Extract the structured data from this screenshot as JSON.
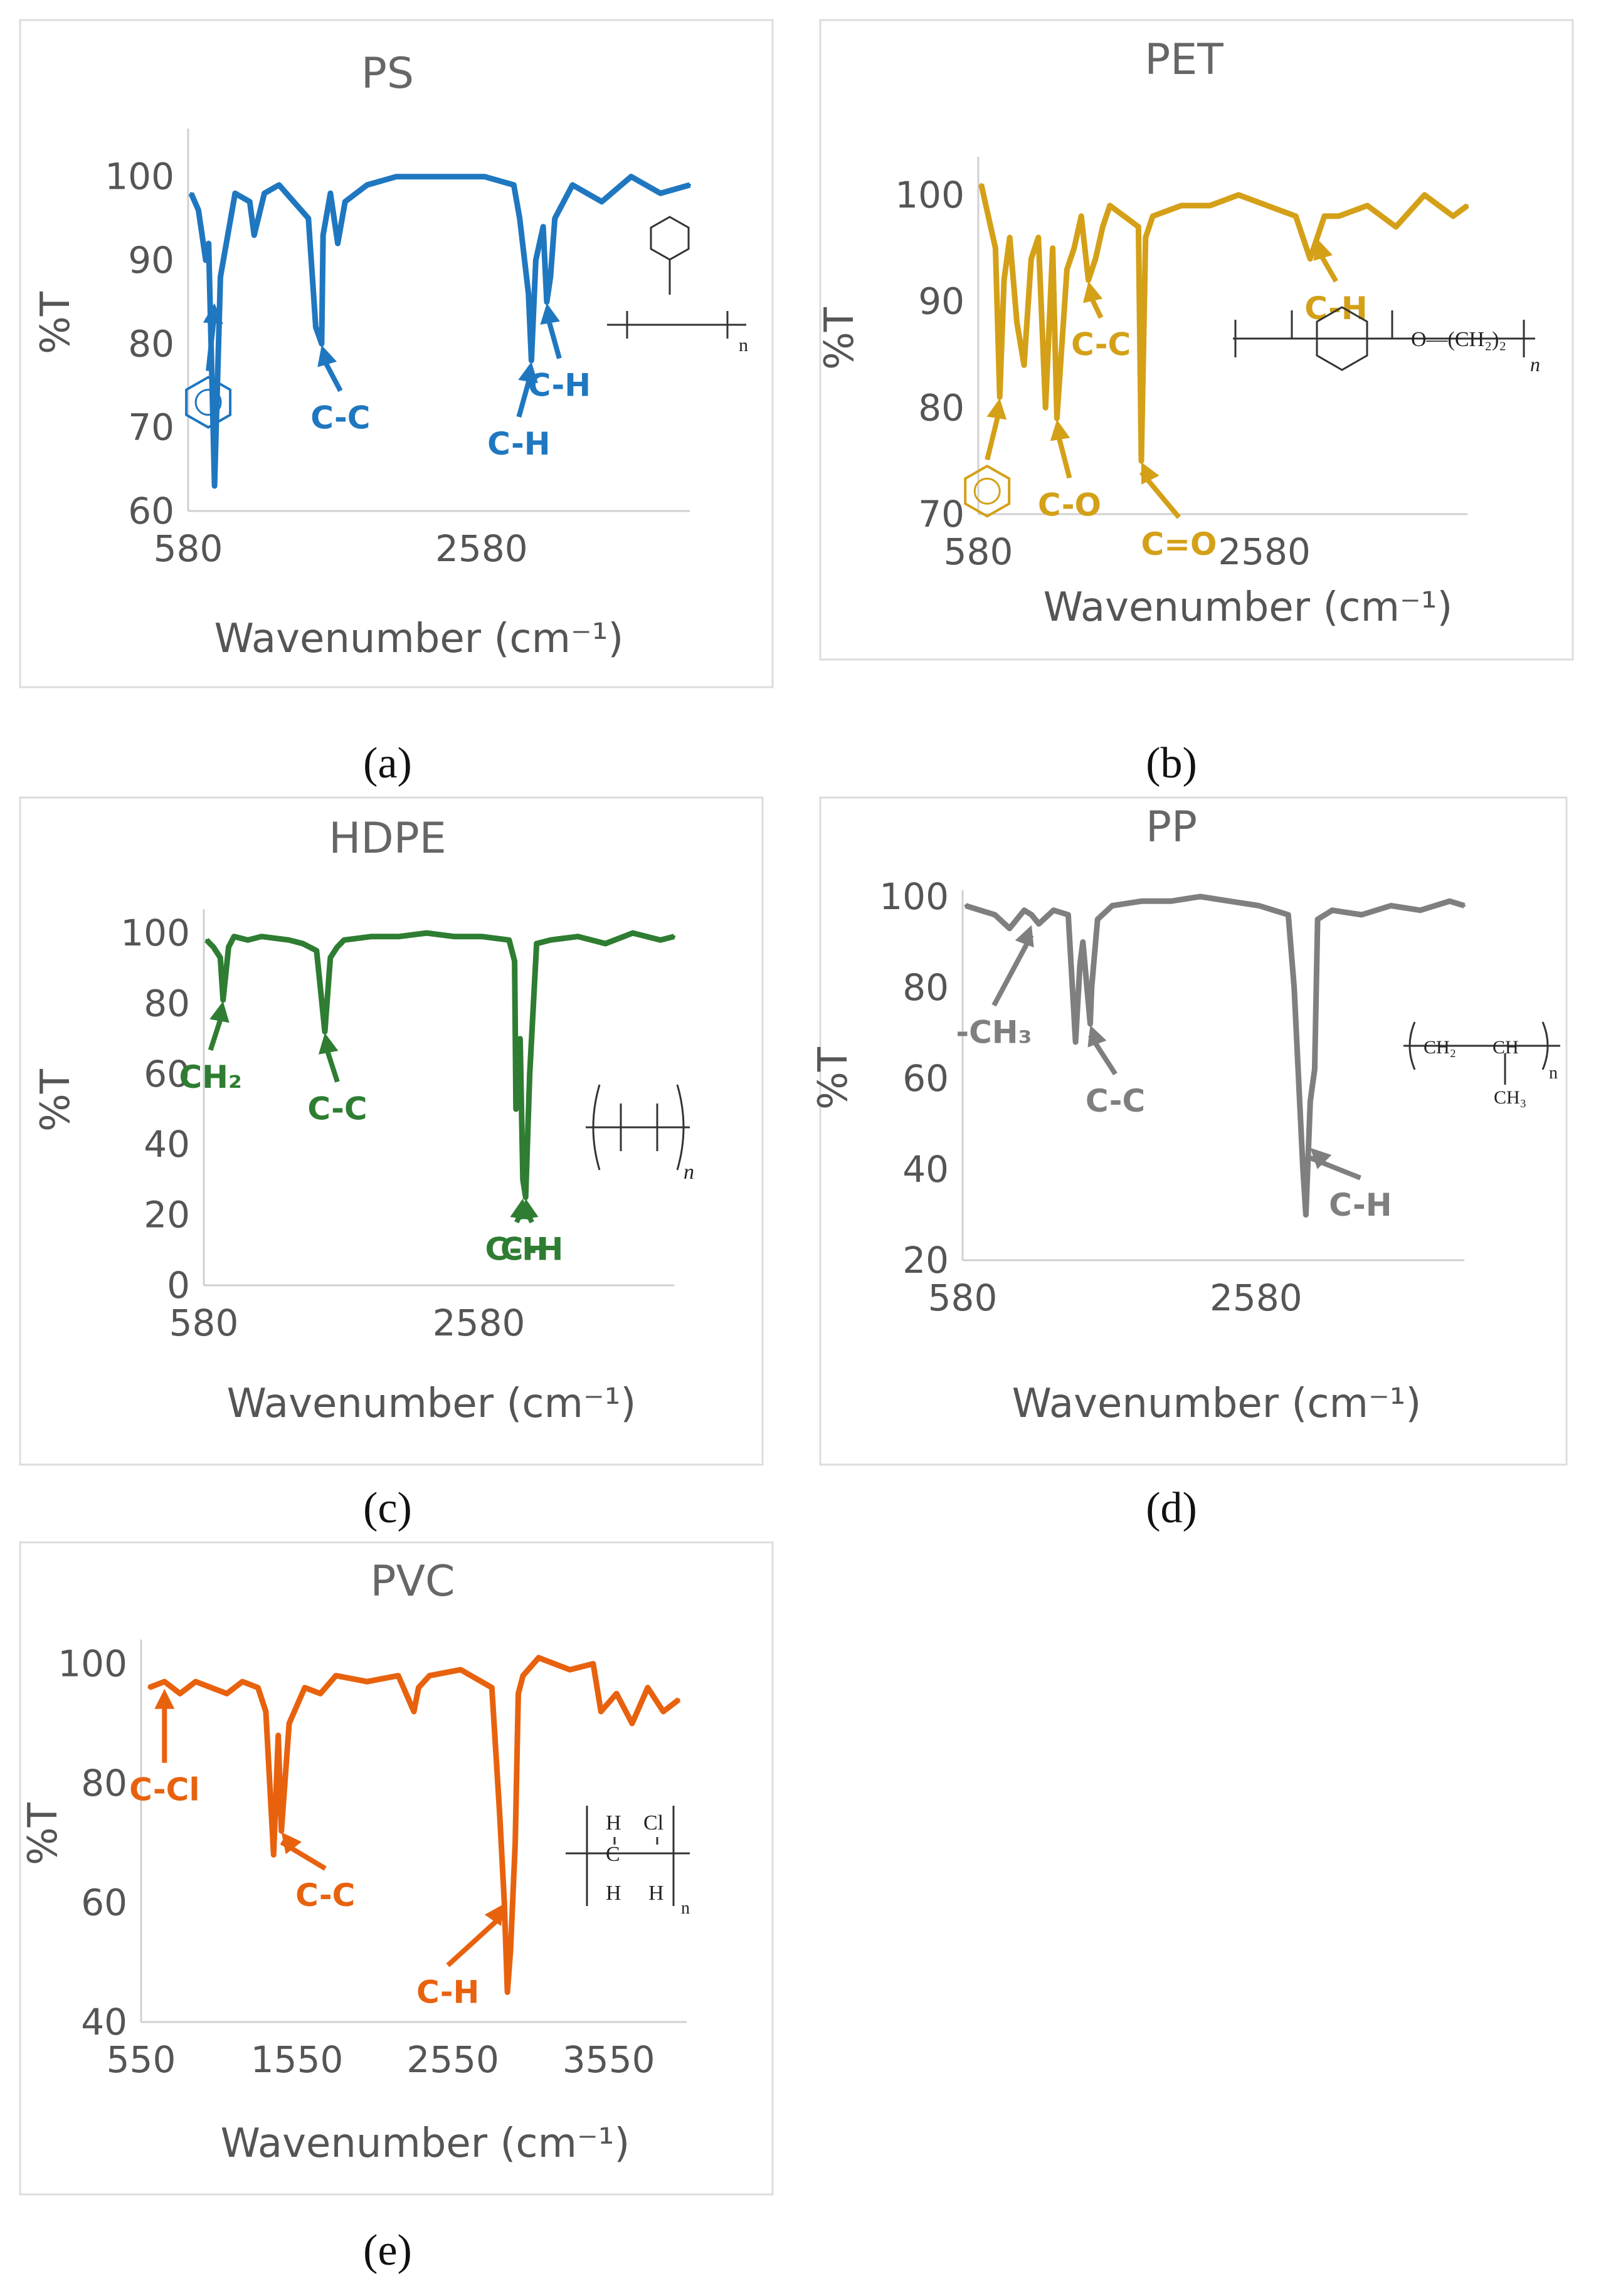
{
  "captions": [
    "(a)",
    "(b)",
    "(c)",
    "(d)",
    "(e)"
  ],
  "chart_data": [
    {
      "type": "line",
      "panel": "(a)",
      "title": "PS",
      "color": "#1F77C0",
      "xlabel": "Wavenumber (cm⁻¹)",
      "ylabel": "%T",
      "xlim": [
        580,
        4000
      ],
      "ylim": [
        60,
        105
      ],
      "xticks": [
        580,
        2580
      ],
      "yticks": [
        60,
        70,
        80,
        90,
        100
      ],
      "series": [
        {
          "name": "PS",
          "x": [
            600,
            650,
            700,
            720,
            760,
            800,
            900,
            1000,
            1030,
            1100,
            1200,
            1300,
            1400,
            1450,
            1490,
            1500,
            1550,
            1600,
            1650,
            1800,
            2000,
            2200,
            2400,
            2600,
            2800,
            2840,
            2900,
            2920,
            2950,
            3000,
            3025,
            3050,
            3080,
            3200,
            3400,
            3600,
            3800,
            4000
          ],
          "y": [
            98,
            96,
            90,
            92,
            63,
            88,
            98,
            97,
            93,
            98,
            99,
            97,
            95,
            82,
            80,
            93,
            98,
            92,
            97,
            99,
            100,
            100,
            100,
            100,
            99,
            95,
            86,
            78,
            90,
            94,
            85,
            88,
            95,
            99,
            97,
            100,
            98,
            99
          ]
        }
      ],
      "annotations": [
        {
          "text": "benzene-ring",
          "x": 760,
          "y": 85
        },
        {
          "text": "C-C",
          "x": 1490,
          "y": 80
        },
        {
          "text": "C-H",
          "x": 2920,
          "y": 78
        },
        {
          "text": "C-H",
          "x": 3025,
          "y": 85
        }
      ],
      "structure": {
        "name": "polystyrene",
        "sub": "n"
      }
    },
    {
      "type": "line",
      "panel": "(b)",
      "title": "PET",
      "color": "#D4A017",
      "xlabel": "Wavenumber (cm⁻¹)",
      "ylabel": "%T",
      "xlim": [
        580,
        4000
      ],
      "ylim": [
        70,
        103
      ],
      "xticks": [
        580,
        2580
      ],
      "yticks": [
        70,
        80,
        90,
        100
      ],
      "series": [
        {
          "name": "PET",
          "x": [
            600,
            650,
            700,
            730,
            760,
            800,
            850,
            900,
            950,
            1000,
            1050,
            1100,
            1130,
            1200,
            1250,
            1300,
            1350,
            1400,
            1450,
            1500,
            1600,
            1700,
            1720,
            1750,
            1800,
            2000,
            2200,
            2400,
            2600,
            2800,
            2900,
            2950,
            3000,
            3100,
            3300,
            3500,
            3700,
            3900,
            4000
          ],
          "y": [
            101,
            98,
            95,
            81,
            92,
            96,
            88,
            84,
            94,
            96,
            80,
            95,
            79,
            93,
            95,
            98,
            92,
            94,
            97,
            99,
            98,
            97,
            75,
            96,
            98,
            99,
            99,
            100,
            99,
            98,
            94,
            96,
            98,
            98,
            99,
            97,
            100,
            98,
            99
          ]
        }
      ],
      "annotations": [
        {
          "text": "benzene-ring",
          "x": 730,
          "y": 81
        },
        {
          "text": "C-O",
          "x": 1130,
          "y": 79
        },
        {
          "text": "C-C",
          "x": 1350,
          "y": 92
        },
        {
          "text": "C=O",
          "x": 1720,
          "y": 75
        },
        {
          "text": "C-H",
          "x": 2950,
          "y": 96
        }
      ],
      "structure": {
        "name": "polyethylene terephthalate",
        "group": "O—(CH₂)₂",
        "sub": "n"
      }
    },
    {
      "type": "line",
      "panel": "(c)",
      "title": "HDPE",
      "color": "#2E7D32",
      "xlabel": "Wavenumber (cm⁻¹)",
      "ylabel": "%T",
      "xlim": [
        580,
        4000
      ],
      "ylim": [
        0,
        105
      ],
      "xticks": [
        580,
        2580
      ],
      "yticks": [
        0,
        20,
        40,
        60,
        80,
        100
      ],
      "series": [
        {
          "name": "HDPE",
          "x": [
            600,
            650,
            700,
            720,
            760,
            800,
            900,
            1000,
            1200,
            1300,
            1400,
            1460,
            1500,
            1550,
            1600,
            1800,
            2000,
            2200,
            2400,
            2600,
            2800,
            2840,
            2850,
            2880,
            2900,
            2920,
            2950,
            3000,
            3100,
            3300,
            3500,
            3700,
            3900,
            4000
          ],
          "y": [
            98,
            96,
            93,
            81,
            96,
            99,
            98,
            99,
            98,
            97,
            95,
            72,
            93,
            96,
            98,
            99,
            99,
            100,
            99,
            99,
            98,
            92,
            50,
            70,
            30,
            25,
            60,
            97,
            98,
            99,
            97,
            100,
            98,
            99
          ]
        }
      ],
      "annotations": [
        {
          "text": "CH₂",
          "x": 720,
          "y": 81
        },
        {
          "text": "C-C",
          "x": 1460,
          "y": 72
        },
        {
          "text": "C-H",
          "x": 2900,
          "y": 25
        },
        {
          "text": "C-H",
          "x": 2920,
          "y": 25
        }
      ],
      "structure": {
        "name": "polyethylene",
        "sub": "n"
      }
    },
    {
      "type": "line",
      "panel": "(d)",
      "title": "PP",
      "color": "#7F7F7F",
      "xlabel": "Wavenumber (cm⁻¹)",
      "ylabel": "%T",
      "xlim": [
        580,
        4000
      ],
      "ylim": [
        20,
        100
      ],
      "xticks": [
        580,
        2580
      ],
      "yticks": [
        20,
        40,
        60,
        80,
        100
      ],
      "series": [
        {
          "name": "PP",
          "x": [
            600,
            700,
            800,
            900,
            950,
            1000,
            1050,
            1100,
            1200,
            1300,
            1350,
            1380,
            1400,
            1450,
            1460,
            1500,
            1600,
            1800,
            2000,
            2200,
            2400,
            2600,
            2800,
            2840,
            2870,
            2900,
            2920,
            2950,
            2980,
            3000,
            3100,
            3300,
            3500,
            3700,
            3900,
            4000
          ],
          "y": [
            98,
            97,
            96,
            93,
            95,
            97,
            96,
            94,
            97,
            96,
            68,
            85,
            90,
            72,
            80,
            95,
            98,
            99,
            99,
            100,
            99,
            98,
            96,
            80,
            60,
            40,
            30,
            55,
            62,
            95,
            97,
            96,
            98,
            97,
            99,
            98
          ]
        }
      ],
      "annotations": [
        {
          "text": "-CH₃",
          "x": 1050,
          "y": 94
        },
        {
          "text": "C-C",
          "x": 1450,
          "y": 72
        },
        {
          "text": "C-H",
          "x": 2950,
          "y": 45
        }
      ],
      "structure": {
        "name": "polypropylene",
        "ch2": "CH₂",
        "ch": "CH",
        "ch3": "CH₃",
        "sub": "n"
      }
    },
    {
      "type": "line",
      "panel": "(e)",
      "title": "PVC",
      "color": "#E8620E",
      "xlabel": "Wavenumber (cm⁻¹)",
      "ylabel": "%T",
      "xlim": [
        550,
        4050
      ],
      "ylim": [
        40,
        103
      ],
      "xticks": [
        550,
        1550,
        2550,
        3550
      ],
      "yticks": [
        40,
        60,
        80,
        100
      ],
      "series": [
        {
          "name": "PVC",
          "x": [
            600,
            700,
            800,
            900,
            1000,
            1100,
            1200,
            1300,
            1350,
            1400,
            1430,
            1450,
            1500,
            1600,
            1700,
            1800,
            2000,
            2200,
            2300,
            2330,
            2400,
            2600,
            2800,
            2850,
            2880,
            2900,
            2920,
            2950,
            2970,
            3000,
            3100,
            3300,
            3450,
            3500,
            3600,
            3700,
            3800,
            3900,
            4000
          ],
          "y": [
            96,
            97,
            95,
            97,
            96,
            95,
            97,
            96,
            92,
            68,
            88,
            72,
            90,
            96,
            95,
            98,
            97,
            98,
            92,
            96,
            98,
            99,
            96,
            75,
            60,
            45,
            52,
            70,
            95,
            98,
            101,
            99,
            100,
            92,
            95,
            90,
            96,
            92,
            94
          ]
        }
      ],
      "annotations": [
        {
          "text": "C-Cl",
          "x": 700,
          "y": 96
        },
        {
          "text": "C-C",
          "x": 1450,
          "y": 72
        },
        {
          "text": "C-H",
          "x": 2880,
          "y": 60
        }
      ],
      "structure": {
        "name": "polyvinyl chloride",
        "h": "H",
        "c": "C",
        "cl": "Cl",
        "sub": "n"
      }
    }
  ]
}
